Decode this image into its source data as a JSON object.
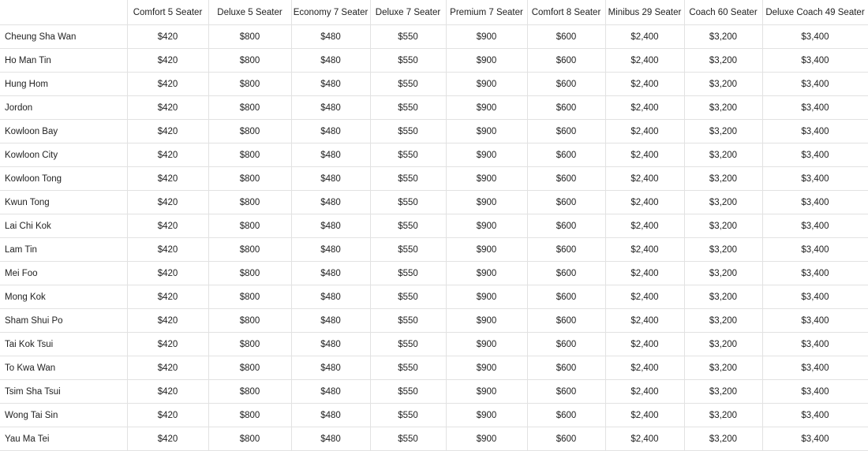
{
  "table": {
    "columns": [
      "Comfort 5 Seater",
      "Deluxe 5 Seater",
      "Economy 7 Seater",
      "Deluxe 7 Seater",
      "Premium 7 Seater",
      "Comfort 8 Seater",
      "Minibus 29 Seater",
      "Coach 60 Seater",
      "Deluxe Coach 49 Seater"
    ],
    "rows": [
      {
        "name": "Cheung Sha Wan",
        "prices": [
          "$420",
          "$800",
          "$480",
          "$550",
          "$900",
          "$600",
          "$2,400",
          "$3,200",
          "$3,400"
        ]
      },
      {
        "name": "Ho Man Tin",
        "prices": [
          "$420",
          "$800",
          "$480",
          "$550",
          "$900",
          "$600",
          "$2,400",
          "$3,200",
          "$3,400"
        ]
      },
      {
        "name": "Hung Hom",
        "prices": [
          "$420",
          "$800",
          "$480",
          "$550",
          "$900",
          "$600",
          "$2,400",
          "$3,200",
          "$3,400"
        ]
      },
      {
        "name": "Jordon",
        "prices": [
          "$420",
          "$800",
          "$480",
          "$550",
          "$900",
          "$600",
          "$2,400",
          "$3,200",
          "$3,400"
        ]
      },
      {
        "name": "Kowloon Bay",
        "prices": [
          "$420",
          "$800",
          "$480",
          "$550",
          "$900",
          "$600",
          "$2,400",
          "$3,200",
          "$3,400"
        ]
      },
      {
        "name": "Kowloon City",
        "prices": [
          "$420",
          "$800",
          "$480",
          "$550",
          "$900",
          "$600",
          "$2,400",
          "$3,200",
          "$3,400"
        ]
      },
      {
        "name": "Kowloon Tong",
        "prices": [
          "$420",
          "$800",
          "$480",
          "$550",
          "$900",
          "$600",
          "$2,400",
          "$3,200",
          "$3,400"
        ]
      },
      {
        "name": "Kwun Tong",
        "prices": [
          "$420",
          "$800",
          "$480",
          "$550",
          "$900",
          "$600",
          "$2,400",
          "$3,200",
          "$3,400"
        ]
      },
      {
        "name": "Lai Chi Kok",
        "prices": [
          "$420",
          "$800",
          "$480",
          "$550",
          "$900",
          "$600",
          "$2,400",
          "$3,200",
          "$3,400"
        ]
      },
      {
        "name": "Lam Tin",
        "prices": [
          "$420",
          "$800",
          "$480",
          "$550",
          "$900",
          "$600",
          "$2,400",
          "$3,200",
          "$3,400"
        ]
      },
      {
        "name": "Mei Foo",
        "prices": [
          "$420",
          "$800",
          "$480",
          "$550",
          "$900",
          "$600",
          "$2,400",
          "$3,200",
          "$3,400"
        ]
      },
      {
        "name": "Mong Kok",
        "prices": [
          "$420",
          "$800",
          "$480",
          "$550",
          "$900",
          "$600",
          "$2,400",
          "$3,200",
          "$3,400"
        ]
      },
      {
        "name": "Sham Shui Po",
        "prices": [
          "$420",
          "$800",
          "$480",
          "$550",
          "$900",
          "$600",
          "$2,400",
          "$3,200",
          "$3,400"
        ]
      },
      {
        "name": "Tai Kok Tsui",
        "prices": [
          "$420",
          "$800",
          "$480",
          "$550",
          "$900",
          "$600",
          "$2,400",
          "$3,200",
          "$3,400"
        ]
      },
      {
        "name": "To Kwa Wan",
        "prices": [
          "$420",
          "$800",
          "$480",
          "$550",
          "$900",
          "$600",
          "$2,400",
          "$3,200",
          "$3,400"
        ]
      },
      {
        "name": "Tsim Sha Tsui",
        "prices": [
          "$420",
          "$800",
          "$480",
          "$550",
          "$900",
          "$600",
          "$2,400",
          "$3,200",
          "$3,400"
        ]
      },
      {
        "name": "Wong Tai Sin",
        "prices": [
          "$420",
          "$800",
          "$480",
          "$550",
          "$900",
          "$600",
          "$2,400",
          "$3,200",
          "$3,400"
        ]
      },
      {
        "name": "Yau Ma Tei",
        "prices": [
          "$420",
          "$800",
          "$480",
          "$550",
          "$900",
          "$600",
          "$2,400",
          "$3,200",
          "$3,400"
        ]
      }
    ]
  }
}
